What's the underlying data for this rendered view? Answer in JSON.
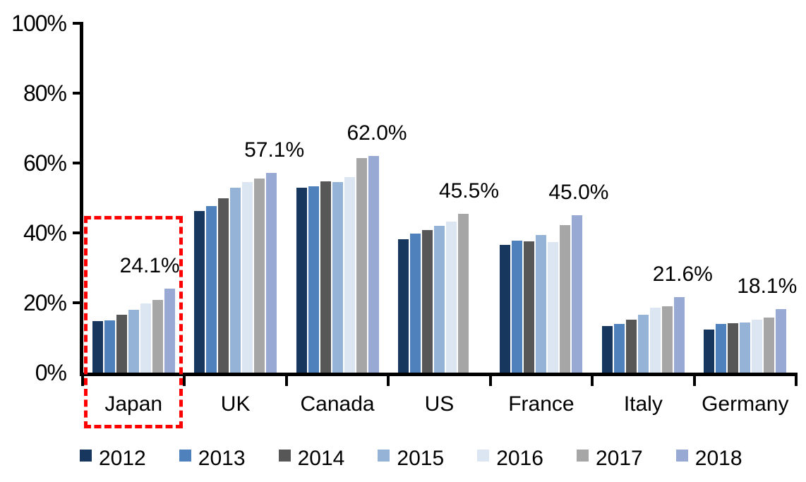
{
  "chart_data": {
    "type": "bar",
    "title": "",
    "xlabel": "",
    "ylabel": "",
    "ylim": [
      0,
      100
    ],
    "y_ticks": [
      "0%",
      "20%",
      "40%",
      "60%",
      "80%",
      "100%"
    ],
    "grid": false,
    "legend_position": "bottom",
    "categories": [
      "Japan",
      "UK",
      "Canada",
      "US",
      "France",
      "Italy",
      "Germany"
    ],
    "series": [
      {
        "name": "2012",
        "color": "#17375E",
        "values": [
          14.8,
          46.2,
          52.9,
          38.2,
          36.5,
          13.3,
          12.4
        ]
      },
      {
        "name": "2013",
        "color": "#4F81BD",
        "values": [
          15.0,
          47.6,
          53.3,
          39.8,
          37.7,
          14.0,
          13.9
        ]
      },
      {
        "name": "2014",
        "color": "#575757",
        "values": [
          16.5,
          49.8,
          54.8,
          40.9,
          37.5,
          15.1,
          14.1
        ]
      },
      {
        "name": "2015",
        "color": "#95B3D7",
        "values": [
          18.0,
          53.0,
          54.6,
          42.0,
          39.3,
          16.6,
          14.4
        ]
      },
      {
        "name": "2016",
        "color": "#DCE6F2",
        "values": [
          19.8,
          54.6,
          56.0,
          43.3,
          37.3,
          18.6,
          15.1
        ]
      },
      {
        "name": "2017",
        "color": "#A6A6A6",
        "values": [
          20.9,
          55.6,
          61.4,
          45.5,
          42.3,
          18.9,
          15.7
        ]
      },
      {
        "name": "2018",
        "color": "#98A9D3",
        "values": [
          24.1,
          57.1,
          62.0,
          null,
          45.0,
          21.6,
          18.1
        ]
      }
    ],
    "peak_labels": [
      "24.1%",
      "57.1%",
      "62.0%",
      "45.5%",
      "45.0%",
      "21.6%",
      "18.1%"
    ],
    "legend": [
      "2012",
      "2013",
      "2014",
      "2015",
      "2016",
      "2017",
      "2018"
    ],
    "highlight": {
      "category": "Japan",
      "shape": "dashed-rectangle",
      "color": "#FF0000"
    },
    "axis_color": "#000000"
  }
}
